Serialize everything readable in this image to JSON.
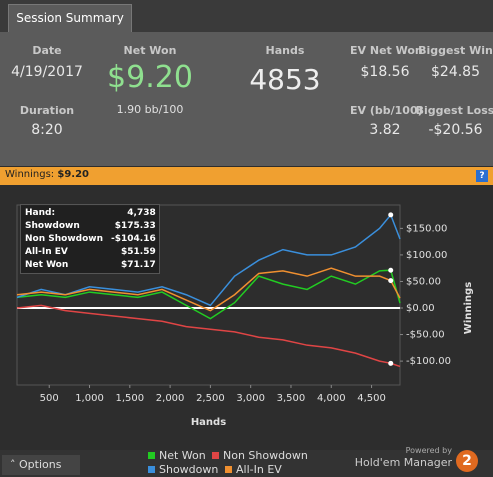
{
  "tab": "Session Summary",
  "stats": {
    "date": {
      "label": "Date",
      "value": "4/19/2017"
    },
    "net_won": {
      "label": "Net Won",
      "value": "$9.20",
      "sub": "1.90 bb/100"
    },
    "hands": {
      "label": "Hands",
      "value": "4853"
    },
    "ev_net_won": {
      "label": "EV Net Won",
      "value": "$18.56"
    },
    "biggest_win": {
      "label": "Biggest Win",
      "value": "$24.85"
    },
    "duration": {
      "label": "Duration",
      "value": "8:20"
    },
    "ev_bb": {
      "label": "EV (bb/100)",
      "value": "3.82"
    },
    "biggest_loss": {
      "label": "Biggest Loss",
      "value": "-$20.56"
    }
  },
  "winnings_bar": {
    "label": "Winnings:",
    "value": "$9.20",
    "help": "?"
  },
  "tooltip": {
    "rows": [
      [
        "Hand:",
        "4,738"
      ],
      [
        "Showdown",
        "$175.33"
      ],
      [
        "Non Showdown",
        "-$104.16"
      ],
      [
        "All-In EV",
        "$51.59"
      ],
      [
        "Net Won",
        "$71.17"
      ]
    ]
  },
  "chart_data": {
    "type": "line",
    "x_label": "Hands",
    "y_label": "Winnings",
    "x": [
      100,
      400,
      700,
      1000,
      1300,
      1600,
      1900,
      2200,
      2500,
      2800,
      3100,
      3400,
      3700,
      4000,
      4300,
      4600,
      4738,
      4853
    ],
    "series": [
      {
        "name": "Net Won",
        "color": "#22cc22",
        "values": [
          20,
          25,
          20,
          30,
          25,
          20,
          30,
          5,
          -20,
          10,
          60,
          45,
          35,
          60,
          45,
          70,
          71.17,
          9.2
        ]
      },
      {
        "name": "Non Showdown",
        "color": "#e04545",
        "values": [
          0,
          5,
          -5,
          -10,
          -15,
          -20,
          -25,
          -35,
          -40,
          -45,
          -55,
          -60,
          -70,
          -75,
          -85,
          -100,
          -104.16,
          -110
        ]
      },
      {
        "name": "Showdown",
        "color": "#3a8fdc",
        "values": [
          20,
          35,
          25,
          40,
          35,
          30,
          40,
          25,
          5,
          60,
          90,
          110,
          100,
          100,
          115,
          150,
          175.33,
          130
        ]
      },
      {
        "name": "All-In EV",
        "color": "#f09030",
        "values": [
          25,
          30,
          25,
          35,
          30,
          25,
          35,
          15,
          -5,
          25,
          65,
          70,
          60,
          75,
          60,
          60,
          51.59,
          18.56
        ]
      }
    ],
    "xlim": [
      100,
      4853
    ],
    "ylim": [
      -145,
      194
    ],
    "xticks": [
      500,
      {
        "value": 1000,
        "label": "1,000"
      },
      {
        "value": 1500,
        "label": "1,500"
      },
      {
        "value": 2000,
        "label": "2,000"
      },
      {
        "value": 2500,
        "label": "2,500"
      },
      {
        "value": 3000,
        "label": "3,000"
      },
      {
        "value": 3500,
        "label": "3,500"
      },
      {
        "value": 4000,
        "label": "4,000"
      },
      {
        "value": 4500,
        "label": "4,500"
      }
    ],
    "yticks": [
      {
        "value": -100,
        "label": "-$100.00"
      },
      {
        "value": -50,
        "label": "-$50.00"
      },
      {
        "value": 0,
        "label": "$0.00"
      },
      {
        "value": 50,
        "label": "$50.00"
      },
      {
        "value": 100,
        "label": "$100.00"
      },
      {
        "value": 150,
        "label": "$150.00"
      }
    ],
    "grid": false,
    "zero_line": true,
    "marker_index": 16
  },
  "footer": {
    "options": "Options",
    "powered_by": "Powered by",
    "brand": "Hold'em Manager",
    "badge": "2"
  }
}
